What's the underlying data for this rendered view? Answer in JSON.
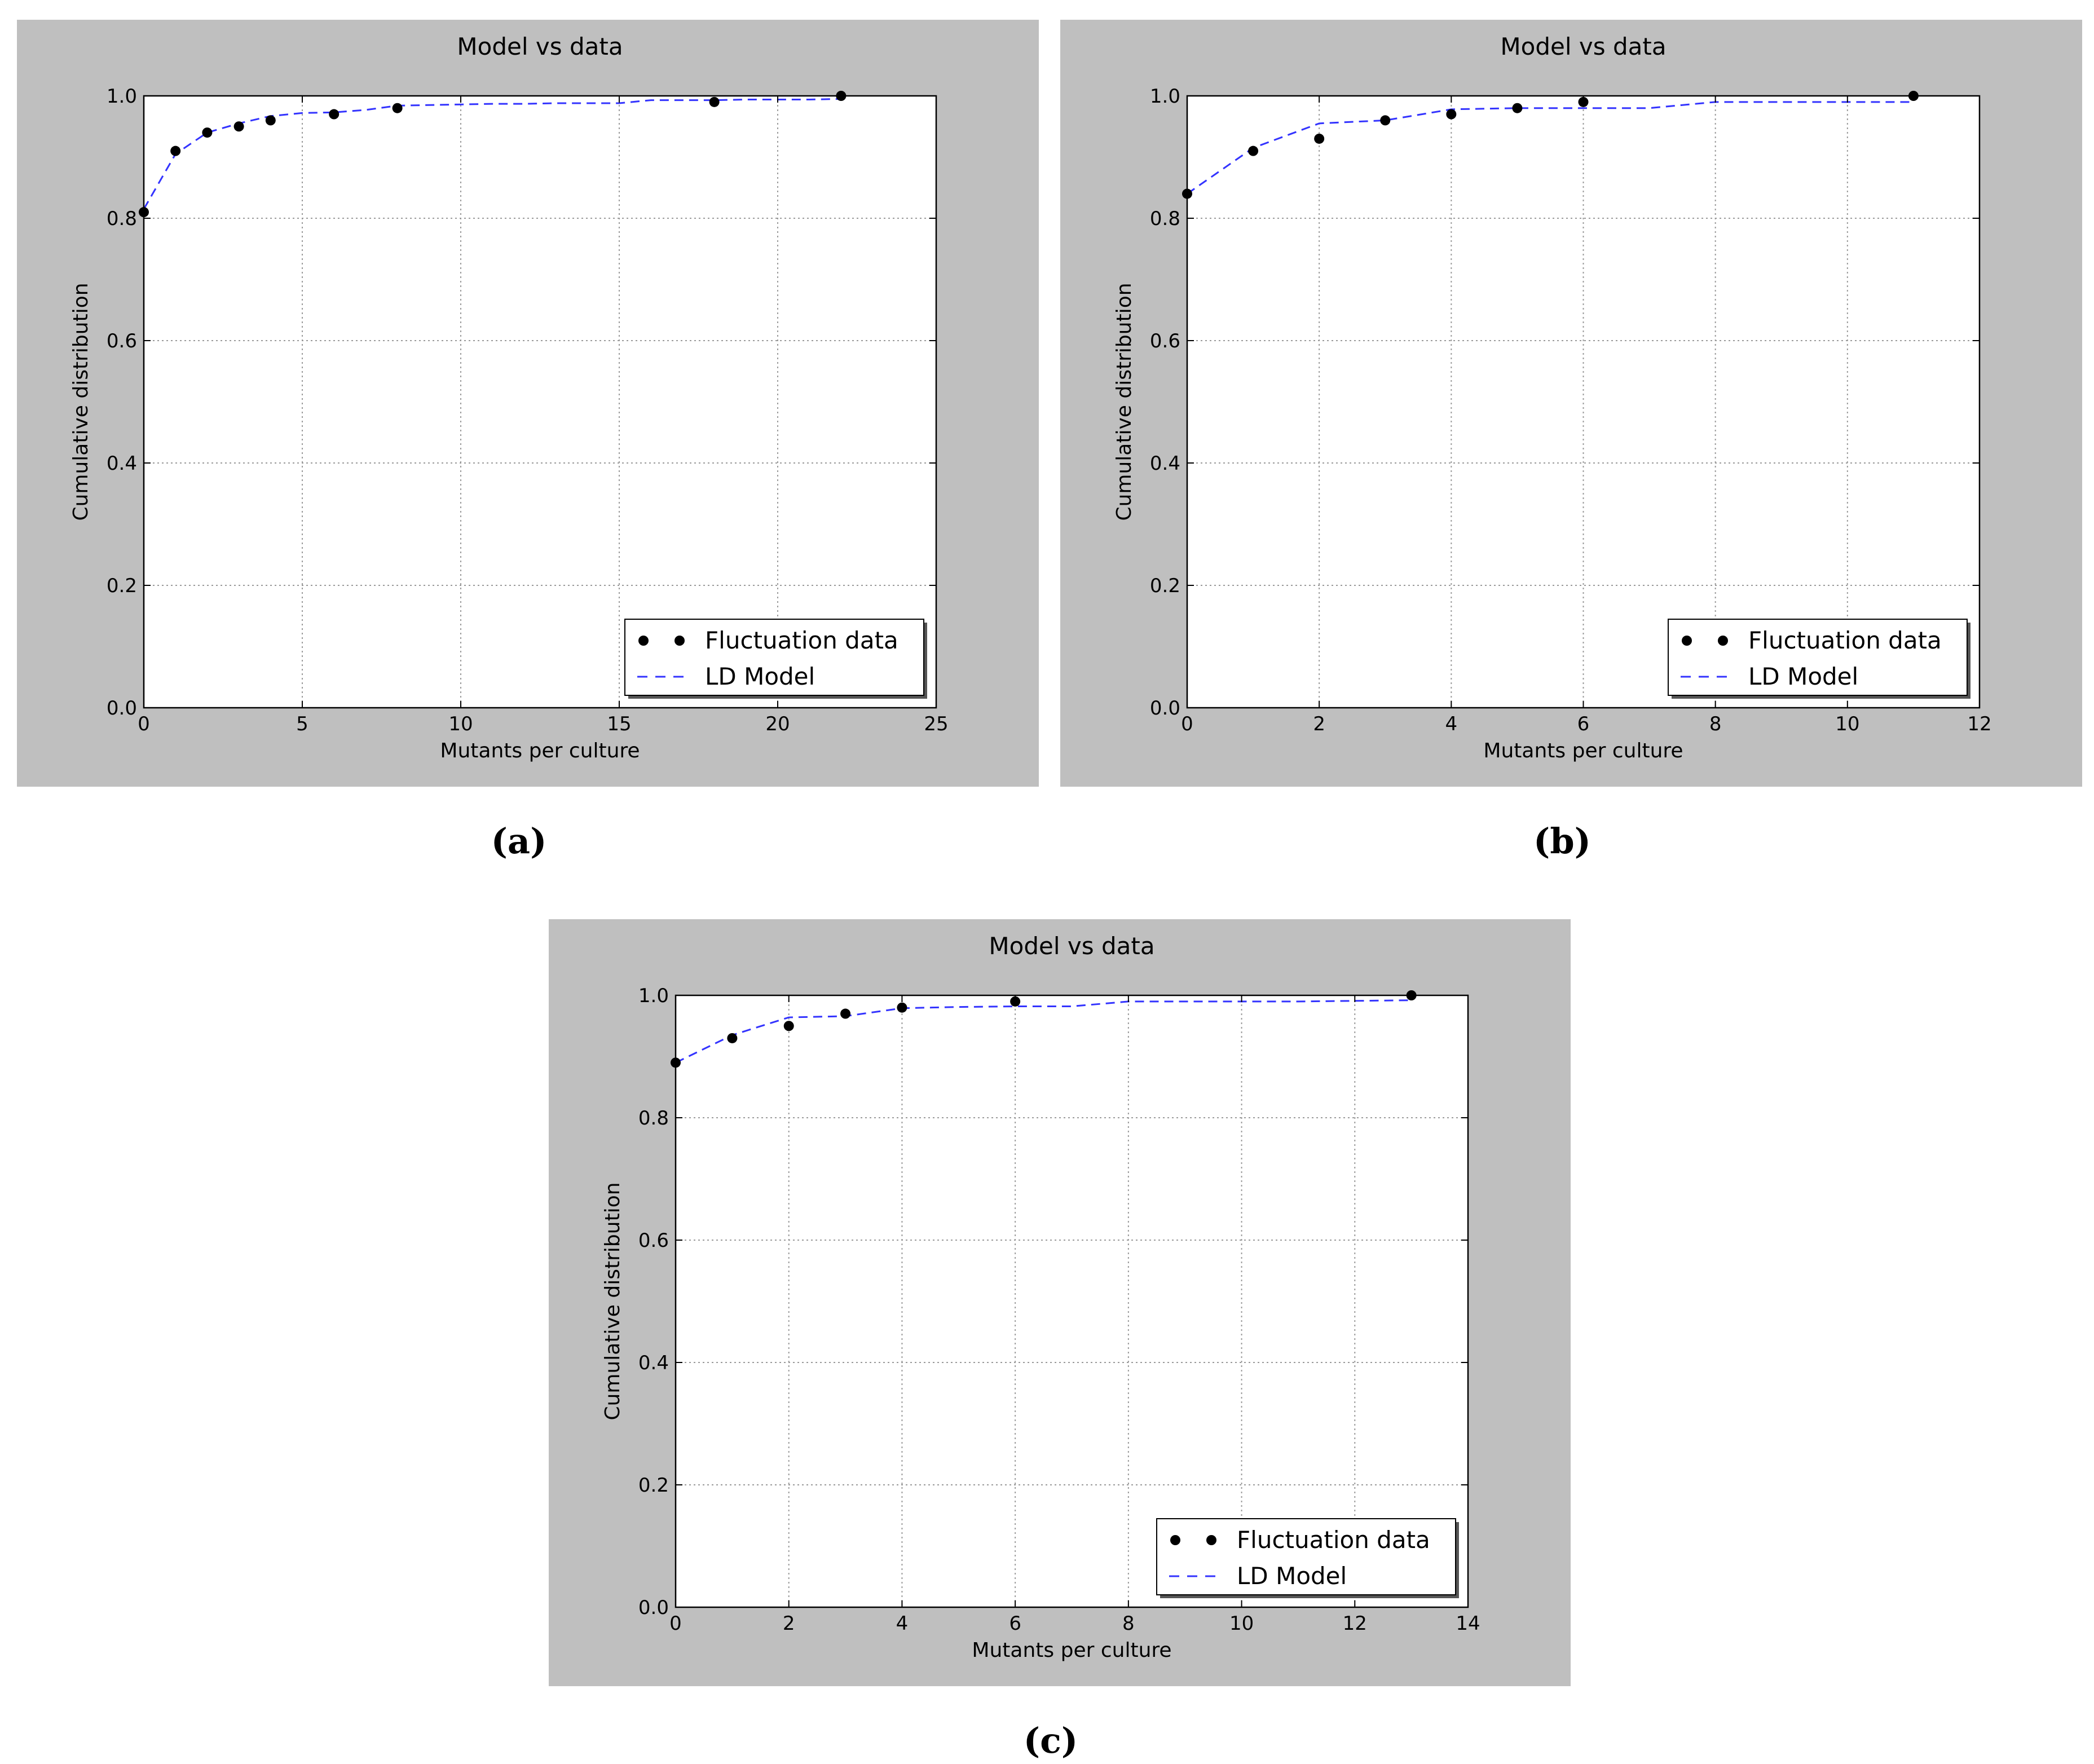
{
  "chart_data": [
    {
      "type": "scatter",
      "title": "Model vs data",
      "xlabel": "Mutants per culture",
      "ylabel": "Cumulative distribution",
      "xlim": [
        0,
        25
      ],
      "ylim": [
        0,
        1.0
      ],
      "xticks": [
        0,
        5,
        10,
        15,
        20,
        25
      ],
      "yticks": [
        0.0,
        0.2,
        0.4,
        0.6,
        0.8,
        1.0
      ],
      "grid": true,
      "legend_position": "lower right",
      "series": [
        {
          "name": "Fluctuation data",
          "style": "points",
          "color": "#000000",
          "x": [
            0,
            1,
            2,
            3,
            4,
            6,
            8,
            18,
            22
          ],
          "y": [
            0.81,
            0.91,
            0.94,
            0.95,
            0.96,
            0.97,
            0.98,
            0.99,
            1.0
          ]
        },
        {
          "name": "LD Model",
          "style": "dashed",
          "color": "#3333ff",
          "x": [
            0,
            1,
            2,
            3,
            4,
            5,
            6,
            7,
            8,
            9,
            10,
            11,
            12,
            13,
            14,
            15,
            16,
            17,
            18,
            19,
            20,
            21,
            22
          ],
          "y": [
            0.815,
            0.905,
            0.94,
            0.955,
            0.967,
            0.972,
            0.973,
            0.977,
            0.984,
            0.985,
            0.986,
            0.987,
            0.987,
            0.988,
            0.988,
            0.988,
            0.993,
            0.993,
            0.993,
            0.994,
            0.994,
            0.994,
            0.995
          ]
        }
      ],
      "caption": "(a)"
    },
    {
      "type": "scatter",
      "title": "Model vs data",
      "xlabel": "Mutants per culture",
      "ylabel": "Cumulative distribution",
      "xlim": [
        0,
        12
      ],
      "ylim": [
        0,
        1.0
      ],
      "xticks": [
        0,
        2,
        4,
        6,
        8,
        10,
        12
      ],
      "yticks": [
        0.0,
        0.2,
        0.4,
        0.6,
        0.8,
        1.0
      ],
      "grid": true,
      "legend_position": "lower right",
      "series": [
        {
          "name": "Fluctuation data",
          "style": "points",
          "color": "#000000",
          "x": [
            0,
            1,
            2,
            3,
            4,
            5,
            6,
            11
          ],
          "y": [
            0.84,
            0.91,
            0.93,
            0.96,
            0.97,
            0.98,
            0.99,
            1.0
          ]
        },
        {
          "name": "LD Model",
          "style": "dashed",
          "color": "#3333ff",
          "x": [
            0,
            1,
            2,
            3,
            4,
            5,
            6,
            7,
            8,
            9,
            10,
            11
          ],
          "y": [
            0.84,
            0.915,
            0.955,
            0.96,
            0.978,
            0.98,
            0.98,
            0.98,
            0.99,
            0.99,
            0.99,
            0.99
          ]
        }
      ],
      "caption": "(b)"
    },
    {
      "type": "scatter",
      "title": "Model vs data",
      "xlabel": "Mutants per culture",
      "ylabel": "Cumulative distribution",
      "xlim": [
        0,
        14
      ],
      "ylim": [
        0,
        1.0
      ],
      "xticks": [
        0,
        2,
        4,
        6,
        8,
        10,
        12,
        14
      ],
      "yticks": [
        0.0,
        0.2,
        0.4,
        0.6,
        0.8,
        1.0
      ],
      "grid": true,
      "legend_position": "lower right",
      "series": [
        {
          "name": "Fluctuation data",
          "style": "points",
          "color": "#000000",
          "x": [
            0,
            1,
            2,
            3,
            4,
            6,
            13
          ],
          "y": [
            0.89,
            0.93,
            0.95,
            0.97,
            0.98,
            0.99,
            1.0
          ]
        },
        {
          "name": "LD Model",
          "style": "dashed",
          "color": "#3333ff",
          "x": [
            0,
            1,
            2,
            3,
            4,
            5,
            6,
            7,
            8,
            9,
            10,
            11,
            12,
            13
          ],
          "y": [
            0.89,
            0.935,
            0.964,
            0.966,
            0.979,
            0.981,
            0.982,
            0.982,
            0.99,
            0.99,
            0.99,
            0.99,
            0.991,
            0.992
          ]
        }
      ],
      "caption": "(c)"
    }
  ],
  "captions": {
    "a": "(a)",
    "b": "(b)",
    "c": "(c)"
  }
}
